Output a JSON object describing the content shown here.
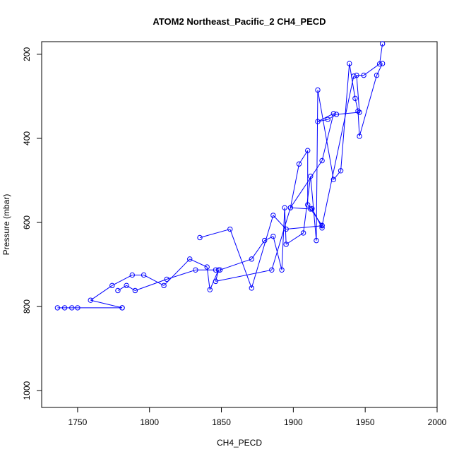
{
  "chart_data": {
    "type": "line",
    "title": "ATOM2 Northeast_Pacific_2 CH4_PECD",
    "xlabel": "CH4_PECD",
    "ylabel": "Pressure (mbar)",
    "xlim": [
      1725,
      2000
    ],
    "ylim": [
      1040,
      170
    ],
    "y_reversed": true,
    "grid": false,
    "legend": "none",
    "color": "#0000ff",
    "x_ticks": [
      1750,
      1800,
      1850,
      1900,
      1950,
      2000
    ],
    "y_ticks": [
      200,
      400,
      600,
      800,
      1000
    ],
    "series": [
      {
        "x": [
          1736,
          1741,
          1746,
          1750,
          1781,
          1781,
          1759,
          1774,
          1788,
          1796,
          1810,
          1828,
          1840,
          1842,
          1848,
          1846,
          1885,
          1898,
          1912,
          1920,
          1920,
          1913,
          1910,
          1910,
          1904,
          1898,
          1920,
          1928,
          1917,
          1924,
          1930,
          1946,
          1944,
          1949,
          1960,
          1962
        ],
        "y": [
          803,
          803,
          803,
          803,
          803,
          803,
          785,
          750,
          725,
          725,
          750,
          687,
          706,
          760,
          713,
          740,
          713,
          565,
          568,
          607,
          613,
          567,
          558,
          429,
          461,
          565,
          453,
          341,
          360,
          355,
          343,
          338,
          250,
          250,
          223,
          175
        ]
      },
      {
        "x": [
          1778,
          1784,
          1790,
          1812,
          1832,
          1846,
          1849,
          1871,
          1880,
          1886,
          1892,
          1894,
          1895,
          1907,
          1912,
          1916,
          1917,
          1928,
          1933,
          1939,
          1943,
          1945,
          1946,
          1958,
          1962
        ],
        "y": [
          762,
          750,
          762,
          735,
          713,
          713,
          713,
          687,
          643,
          633,
          713,
          565,
          652,
          625,
          490,
          643,
          285,
          498,
          477,
          222,
          305,
          335,
          395,
          250,
          222
        ]
      },
      {
        "x": [
          1835,
          1856,
          1871,
          1886,
          1895,
          1920,
          1942
        ],
        "y": [
          636,
          616,
          756,
          583,
          616,
          608,
          252
        ]
      }
    ]
  }
}
